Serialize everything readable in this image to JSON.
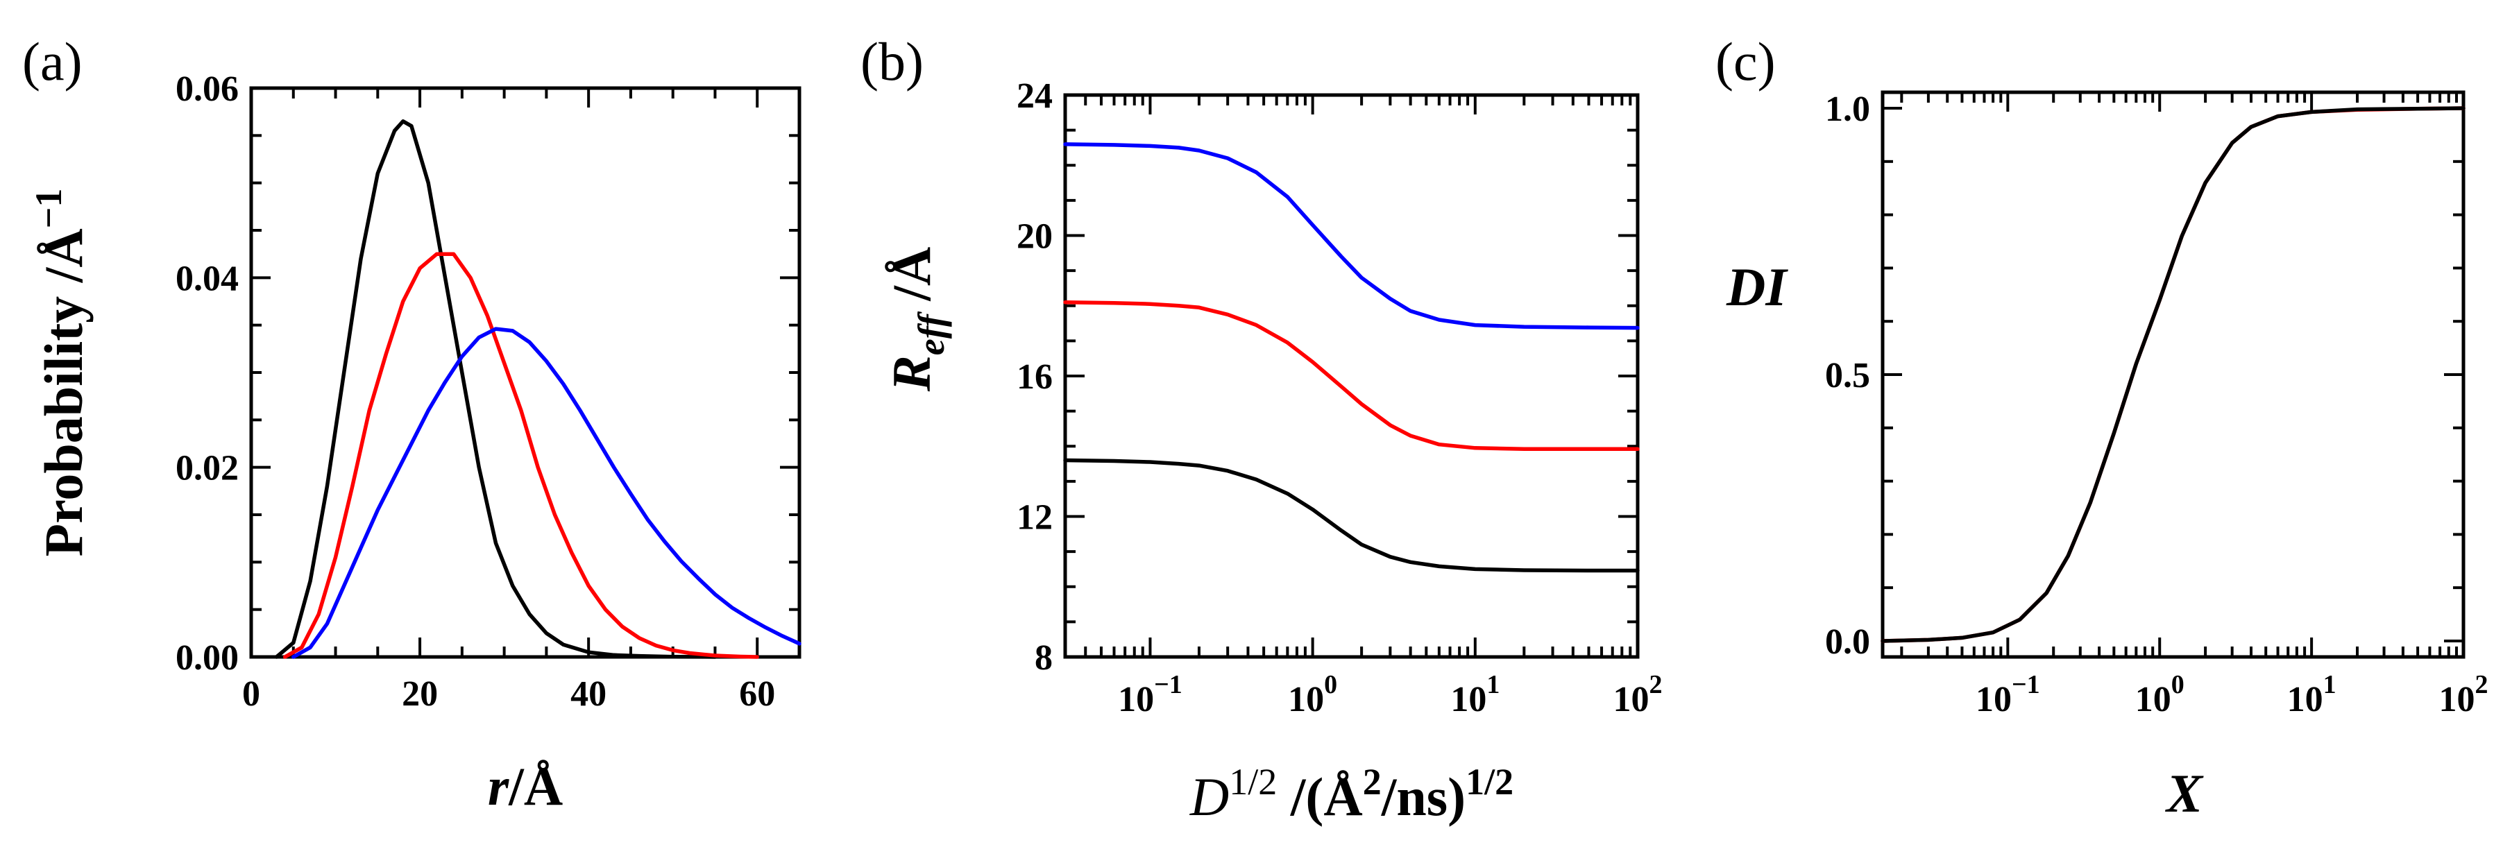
{
  "chart_data": [
    {
      "type": "line",
      "panel_label": "(a)",
      "xlabel": {
        "main": "r",
        "unit": "/Å"
      },
      "ylabel": {
        "main": "Probability /Å",
        "sup": "−1"
      },
      "xlim": [
        0,
        65
      ],
      "ylim": [
        0,
        0.06
      ],
      "xticks": [
        0,
        20,
        40,
        60
      ],
      "xtick_labels": [
        "0",
        "20",
        "40",
        "60"
      ],
      "yticks": [
        0,
        0.02,
        0.04,
        0.06
      ],
      "ytick_labels": [
        "0.00",
        "0.02",
        "0.04",
        "0.06"
      ],
      "series": [
        {
          "name": "black",
          "color": "#000000",
          "x": [
            3,
            5,
            7,
            9,
            11,
            13,
            15,
            17,
            18,
            19,
            21,
            23,
            25,
            27,
            29,
            31,
            33,
            35,
            37,
            40,
            43,
            46,
            50,
            55
          ],
          "y": [
            0,
            0.0015,
            0.008,
            0.018,
            0.03,
            0.042,
            0.051,
            0.0555,
            0.0565,
            0.056,
            0.05,
            0.04,
            0.03,
            0.02,
            0.012,
            0.0075,
            0.0045,
            0.0025,
            0.0013,
            0.0005,
            0.0002,
            0.0001,
            2e-05,
            0
          ]
        },
        {
          "name": "red",
          "color": "#ff0000",
          "x": [
            4,
            6,
            8,
            10,
            12,
            14,
            16,
            18,
            20,
            22,
            24,
            26,
            28,
            30,
            32,
            34,
            36,
            38,
            40,
            42,
            44,
            46,
            48,
            50,
            52,
            55,
            58,
            60
          ],
          "y": [
            0,
            0.001,
            0.0045,
            0.0105,
            0.018,
            0.026,
            0.032,
            0.0375,
            0.041,
            0.0425,
            0.0425,
            0.04,
            0.036,
            0.031,
            0.026,
            0.02,
            0.015,
            0.011,
            0.0075,
            0.005,
            0.0032,
            0.002,
            0.0012,
            0.0007,
            0.0004,
            0.00015,
            4e-05,
            0
          ]
        },
        {
          "name": "blue",
          "color": "#0000ff",
          "x": [
            5,
            7,
            9,
            11,
            13,
            15,
            17,
            19,
            21,
            23,
            25,
            27,
            29,
            31,
            33,
            35,
            37,
            39,
            41,
            43,
            45,
            47,
            49,
            51,
            53,
            55,
            57,
            59,
            61,
            63,
            65
          ],
          "y": [
            0,
            0.001,
            0.0035,
            0.0075,
            0.0115,
            0.0155,
            0.019,
            0.0225,
            0.026,
            0.029,
            0.0317,
            0.0337,
            0.0346,
            0.0344,
            0.0332,
            0.0312,
            0.0288,
            0.026,
            0.023,
            0.02,
            0.0172,
            0.0145,
            0.0122,
            0.0101,
            0.0083,
            0.0066,
            0.0052,
            0.0041,
            0.0031,
            0.0022,
            0.0014
          ]
        }
      ]
    },
    {
      "type": "line",
      "panel_label": "(b)",
      "xscale": "log",
      "ylabel": {
        "main": "R",
        "sub": "eff",
        "unit": " /Å"
      },
      "xlabel": {
        "main": "D",
        "sup": "1/2",
        "mid": " /(Å",
        "sup2": "2",
        "end": "/ns)",
        "sup3": "1/2"
      },
      "xlim": [
        0.03,
        100
      ],
      "ylim": [
        8,
        24
      ],
      "xticks_exp": [
        -1,
        0,
        1,
        2
      ],
      "xtick_base": "10",
      "xtick_exps": [
        "−1",
        "0",
        "1",
        "2"
      ],
      "yticks": [
        8,
        12,
        16,
        20,
        24
      ],
      "ytick_labels": [
        "8",
        "12",
        "16",
        "20",
        "24"
      ],
      "series": [
        {
          "name": "blue",
          "color": "#0000ff",
          "x": [
            0.03,
            0.06,
            0.1,
            0.15,
            0.2,
            0.3,
            0.45,
            0.7,
            1,
            1.5,
            2,
            3,
            4,
            6,
            10,
            20,
            50,
            100
          ],
          "y": [
            22.6,
            22.58,
            22.55,
            22.5,
            22.42,
            22.2,
            21.8,
            21.1,
            20.3,
            19.4,
            18.8,
            18.2,
            17.85,
            17.6,
            17.45,
            17.4,
            17.38,
            17.37
          ]
        },
        {
          "name": "red",
          "color": "#ff0000",
          "x": [
            0.03,
            0.06,
            0.1,
            0.15,
            0.2,
            0.3,
            0.45,
            0.7,
            1,
            1.5,
            2,
            3,
            4,
            6,
            10,
            20,
            50,
            100
          ],
          "y": [
            18.1,
            18.08,
            18.05,
            18.0,
            17.95,
            17.75,
            17.45,
            16.95,
            16.4,
            15.7,
            15.2,
            14.6,
            14.3,
            14.05,
            13.95,
            13.92,
            13.92,
            13.92
          ]
        },
        {
          "name": "black",
          "color": "#000000",
          "x": [
            0.03,
            0.06,
            0.1,
            0.15,
            0.2,
            0.3,
            0.45,
            0.7,
            1,
            1.5,
            2,
            3,
            4,
            6,
            10,
            20,
            50,
            100
          ],
          "y": [
            13.6,
            13.58,
            13.55,
            13.5,
            13.45,
            13.3,
            13.05,
            12.65,
            12.2,
            11.6,
            11.2,
            10.85,
            10.7,
            10.58,
            10.5,
            10.47,
            10.46,
            10.46
          ]
        }
      ]
    },
    {
      "type": "line",
      "panel_label": "(c)",
      "xscale": "log",
      "ylabel": {
        "main": "DI"
      },
      "xlabel": {
        "main": "X"
      },
      "xlim": [
        0.015,
        100
      ],
      "ylim": [
        -0.03,
        1.03
      ],
      "xticks_exp": [
        -1,
        0,
        1,
        2
      ],
      "xtick_base": "10",
      "xtick_exps": [
        "−1",
        "0",
        "1",
        "2"
      ],
      "yticks": [
        0.0,
        0.5,
        1.0
      ],
      "ytick_labels": [
        "0.0",
        "0.5",
        "1.0"
      ],
      "series": [
        {
          "name": "red",
          "color": "#ff0000",
          "x": [
            0.015,
            0.03,
            0.05,
            0.08,
            0.12,
            0.18,
            0.25,
            0.35,
            0.5,
            0.7,
            1,
            1.4,
            2,
            3,
            4,
            6,
            10,
            20,
            50,
            100
          ],
          "y": [
            0.0,
            0.002,
            0.006,
            0.016,
            0.04,
            0.09,
            0.16,
            0.26,
            0.39,
            0.52,
            0.64,
            0.76,
            0.86,
            0.935,
            0.965,
            0.985,
            0.993,
            0.997,
            0.999,
            1.0
          ]
        },
        {
          "name": "black",
          "color": "#000000",
          "x": [
            0.015,
            0.03,
            0.05,
            0.08,
            0.12,
            0.18,
            0.25,
            0.35,
            0.5,
            0.7,
            1,
            1.4,
            2,
            3,
            4,
            6,
            10,
            20,
            50,
            100
          ],
          "y": [
            0.0,
            0.002,
            0.006,
            0.016,
            0.04,
            0.09,
            0.16,
            0.26,
            0.39,
            0.52,
            0.64,
            0.76,
            0.86,
            0.935,
            0.965,
            0.985,
            0.993,
            0.998,
            0.999,
            1.0
          ]
        }
      ]
    }
  ]
}
